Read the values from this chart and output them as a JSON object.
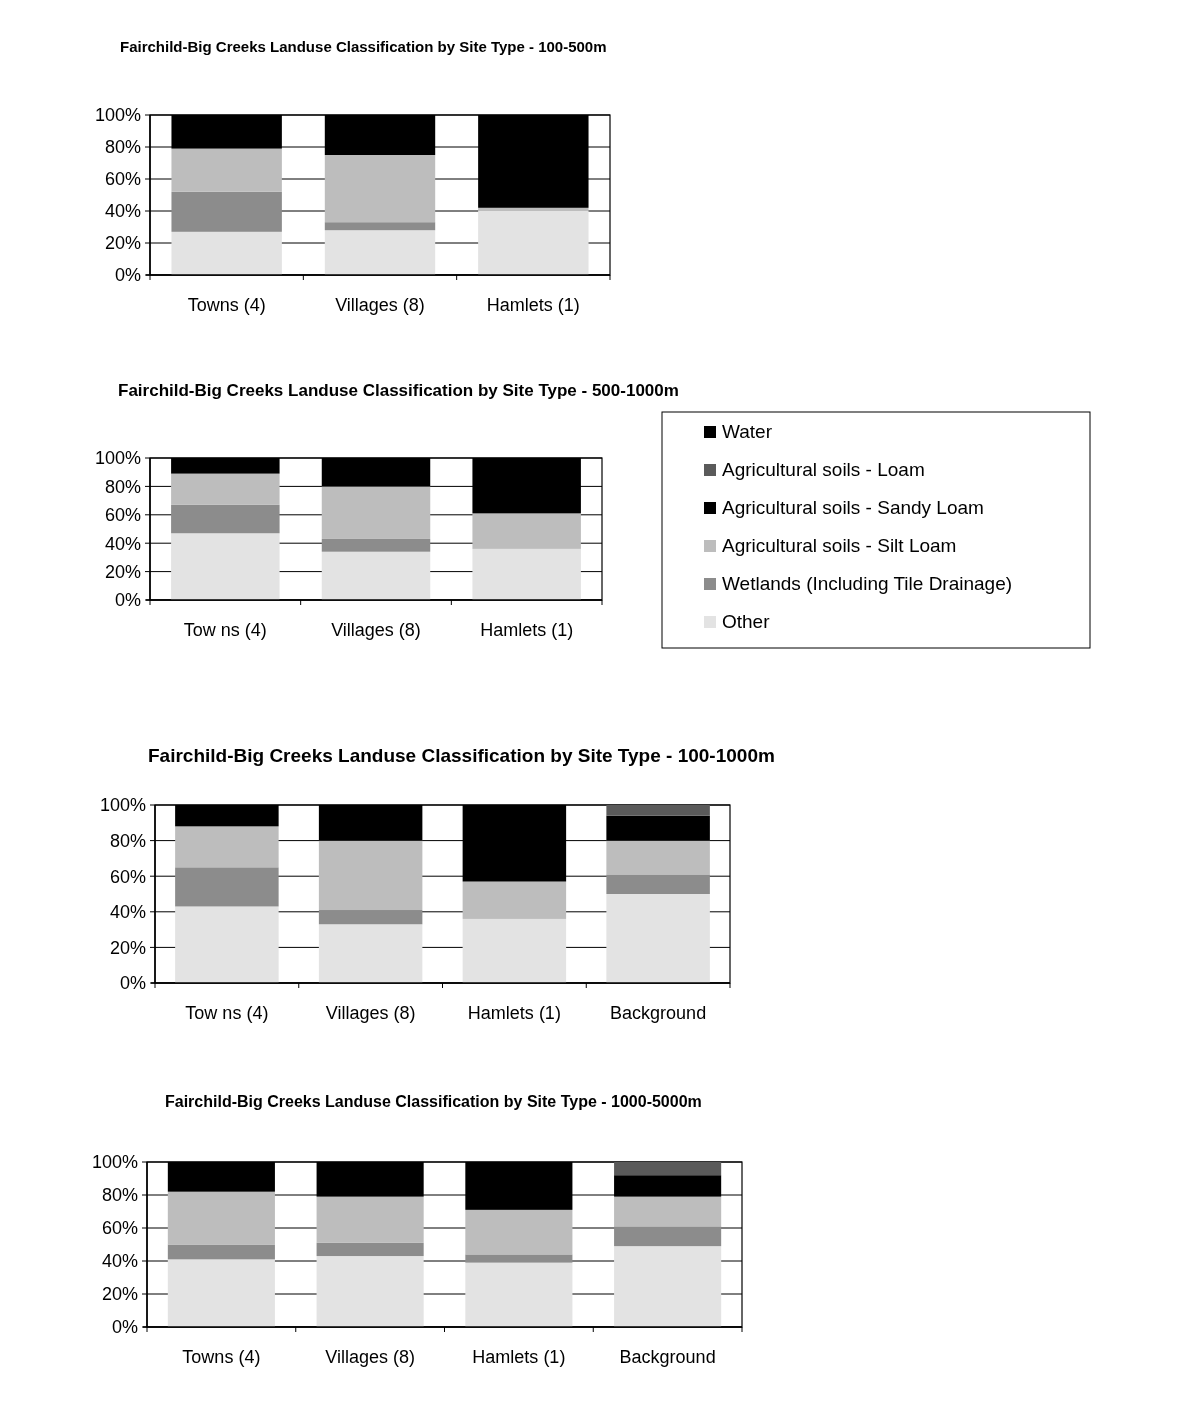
{
  "chart_data": [
    {
      "type": "bar",
      "stacked": true,
      "title": "Fairchild-Big Creeks Landuse Classification by Site Type - 100-500m",
      "categories": [
        "Towns (4)",
        "Villages (8)",
        "Hamlets (1)"
      ],
      "ylim": [
        0,
        100
      ],
      "yticks": [
        {
          "value": 0,
          "label": "0%"
        },
        {
          "value": 20,
          "label": "20%"
        },
        {
          "value": 40,
          "label": "40%"
        },
        {
          "value": 60,
          "label": "60%"
        },
        {
          "value": 80,
          "label": "80%"
        },
        {
          "value": 100,
          "label": "100%"
        }
      ],
      "grid": "y",
      "legend": false,
      "series": [
        {
          "color": "#e3e3e3",
          "values": [
            27,
            28,
            40
          ]
        },
        {
          "color": "#8c8c8c",
          "values": [
            25,
            5,
            0
          ]
        },
        {
          "color": "#bdbdbd",
          "values": [
            27,
            42,
            2
          ]
        },
        {
          "color": "#000000",
          "values": [
            21,
            25,
            58
          ]
        }
      ]
    },
    {
      "type": "bar",
      "stacked": true,
      "title": "Fairchild-Big Creeks Landuse Classification by Site Type - 500-1000m",
      "categories": [
        "Tow ns (4)",
        "Villages (8)",
        "Hamlets (1)"
      ],
      "ylim": [
        0,
        100
      ],
      "yticks": [
        {
          "value": 0,
          "label": "0%"
        },
        {
          "value": 20,
          "label": "20%"
        },
        {
          "value": 40,
          "label": "40%"
        },
        {
          "value": 60,
          "label": "60%"
        },
        {
          "value": 80,
          "label": "80%"
        },
        {
          "value": 100,
          "label": "100%"
        }
      ],
      "grid": "y",
      "legend": "right",
      "series": [
        {
          "name": "Other",
          "color": "#e3e3e3",
          "values": [
            47,
            34,
            36
          ]
        },
        {
          "name": "Wetlands (Including Tile Drainage)",
          "color": "#8c8c8c",
          "values": [
            20,
            9,
            0
          ]
        },
        {
          "name": "Agricultural soils - Silt Loam",
          "color": "#bdbdbd",
          "values": [
            22,
            37,
            25
          ]
        },
        {
          "name": "Agricultural soils - Sandy Loam",
          "color": "#000000",
          "values": [
            11,
            20,
            39
          ]
        },
        {
          "name": "Agricultural soils - Loam",
          "color": "#5a5a5a",
          "values": [
            0,
            0,
            0
          ]
        },
        {
          "name": "Water",
          "color": "#000000",
          "values": [
            0,
            0,
            0
          ]
        }
      ]
    },
    {
      "type": "bar",
      "stacked": true,
      "title": "Fairchild-Big Creeks Landuse Classification by Site Type - 100-1000m",
      "categories": [
        "Tow ns (4)",
        "Villages (8)",
        "Hamlets (1)",
        "Background"
      ],
      "ylim": [
        0,
        100
      ],
      "yticks": [
        {
          "value": 0,
          "label": "0%"
        },
        {
          "value": 20,
          "label": "20%"
        },
        {
          "value": 40,
          "label": "40%"
        },
        {
          "value": 60,
          "label": "60%"
        },
        {
          "value": 80,
          "label": "80%"
        },
        {
          "value": 100,
          "label": "100%"
        }
      ],
      "grid": "y",
      "legend": false,
      "series": [
        {
          "color": "#e3e3e3",
          "values": [
            43,
            33,
            36,
            50
          ]
        },
        {
          "color": "#8c8c8c",
          "values": [
            22,
            8,
            0,
            11
          ]
        },
        {
          "color": "#bdbdbd",
          "values": [
            23,
            39,
            21,
            19
          ]
        },
        {
          "color": "#000000",
          "values": [
            12,
            20,
            43,
            14
          ]
        },
        {
          "color": "#5a5a5a",
          "values": [
            0,
            0,
            0,
            6
          ]
        }
      ]
    },
    {
      "type": "bar",
      "stacked": true,
      "title": "Fairchild-Big Creeks Landuse Classification by Site Type - 1000-5000m",
      "categories": [
        "Towns (4)",
        "Villages (8)",
        "Hamlets (1)",
        "Background"
      ],
      "ylim": [
        0,
        100
      ],
      "yticks": [
        {
          "value": 0,
          "label": "0%"
        },
        {
          "value": 20,
          "label": "20%"
        },
        {
          "value": 40,
          "label": "40%"
        },
        {
          "value": 60,
          "label": "60%"
        },
        {
          "value": 80,
          "label": "80%"
        },
        {
          "value": 100,
          "label": "100%"
        }
      ],
      "grid": "y",
      "legend": false,
      "series": [
        {
          "color": "#e3e3e3",
          "values": [
            41,
            43,
            39,
            49
          ]
        },
        {
          "color": "#8c8c8c",
          "values": [
            9,
            8,
            5,
            12
          ]
        },
        {
          "color": "#bdbdbd",
          "values": [
            32,
            28,
            27,
            18
          ]
        },
        {
          "color": "#000000",
          "values": [
            18,
            21,
            29,
            13
          ]
        },
        {
          "color": "#5a5a5a",
          "values": [
            0,
            0,
            0,
            8
          ]
        }
      ]
    }
  ]
}
